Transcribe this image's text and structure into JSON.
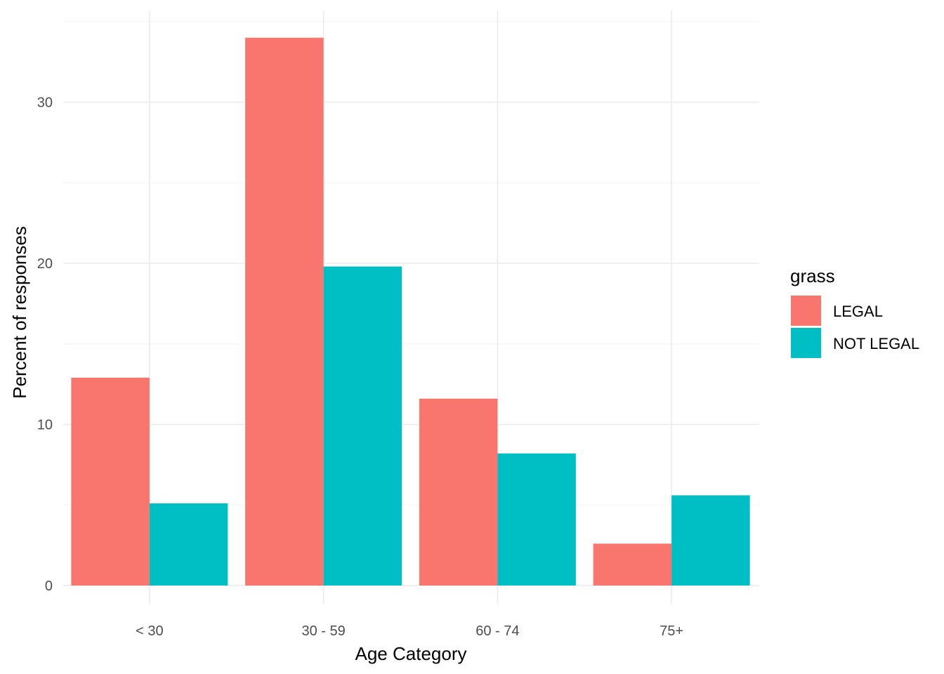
{
  "chart_data": {
    "type": "bar",
    "categories": [
      "< 30",
      "30 - 59",
      "60 - 74",
      "75+"
    ],
    "series": [
      {
        "name": "LEGAL",
        "color": "#F8766D",
        "values": [
          12.9,
          34.0,
          11.6,
          2.6
        ]
      },
      {
        "name": "NOT LEGAL",
        "color": "#00BFC4",
        "values": [
          5.1,
          19.8,
          8.2,
          5.6
        ]
      }
    ],
    "xlabel": "Age Category",
    "ylabel": "Percent of responses",
    "ylim": [
      0,
      35
    ],
    "yticks": [
      0,
      10,
      20,
      30
    ],
    "grid": true,
    "legend": {
      "title": "grass",
      "placement": "right"
    }
  }
}
